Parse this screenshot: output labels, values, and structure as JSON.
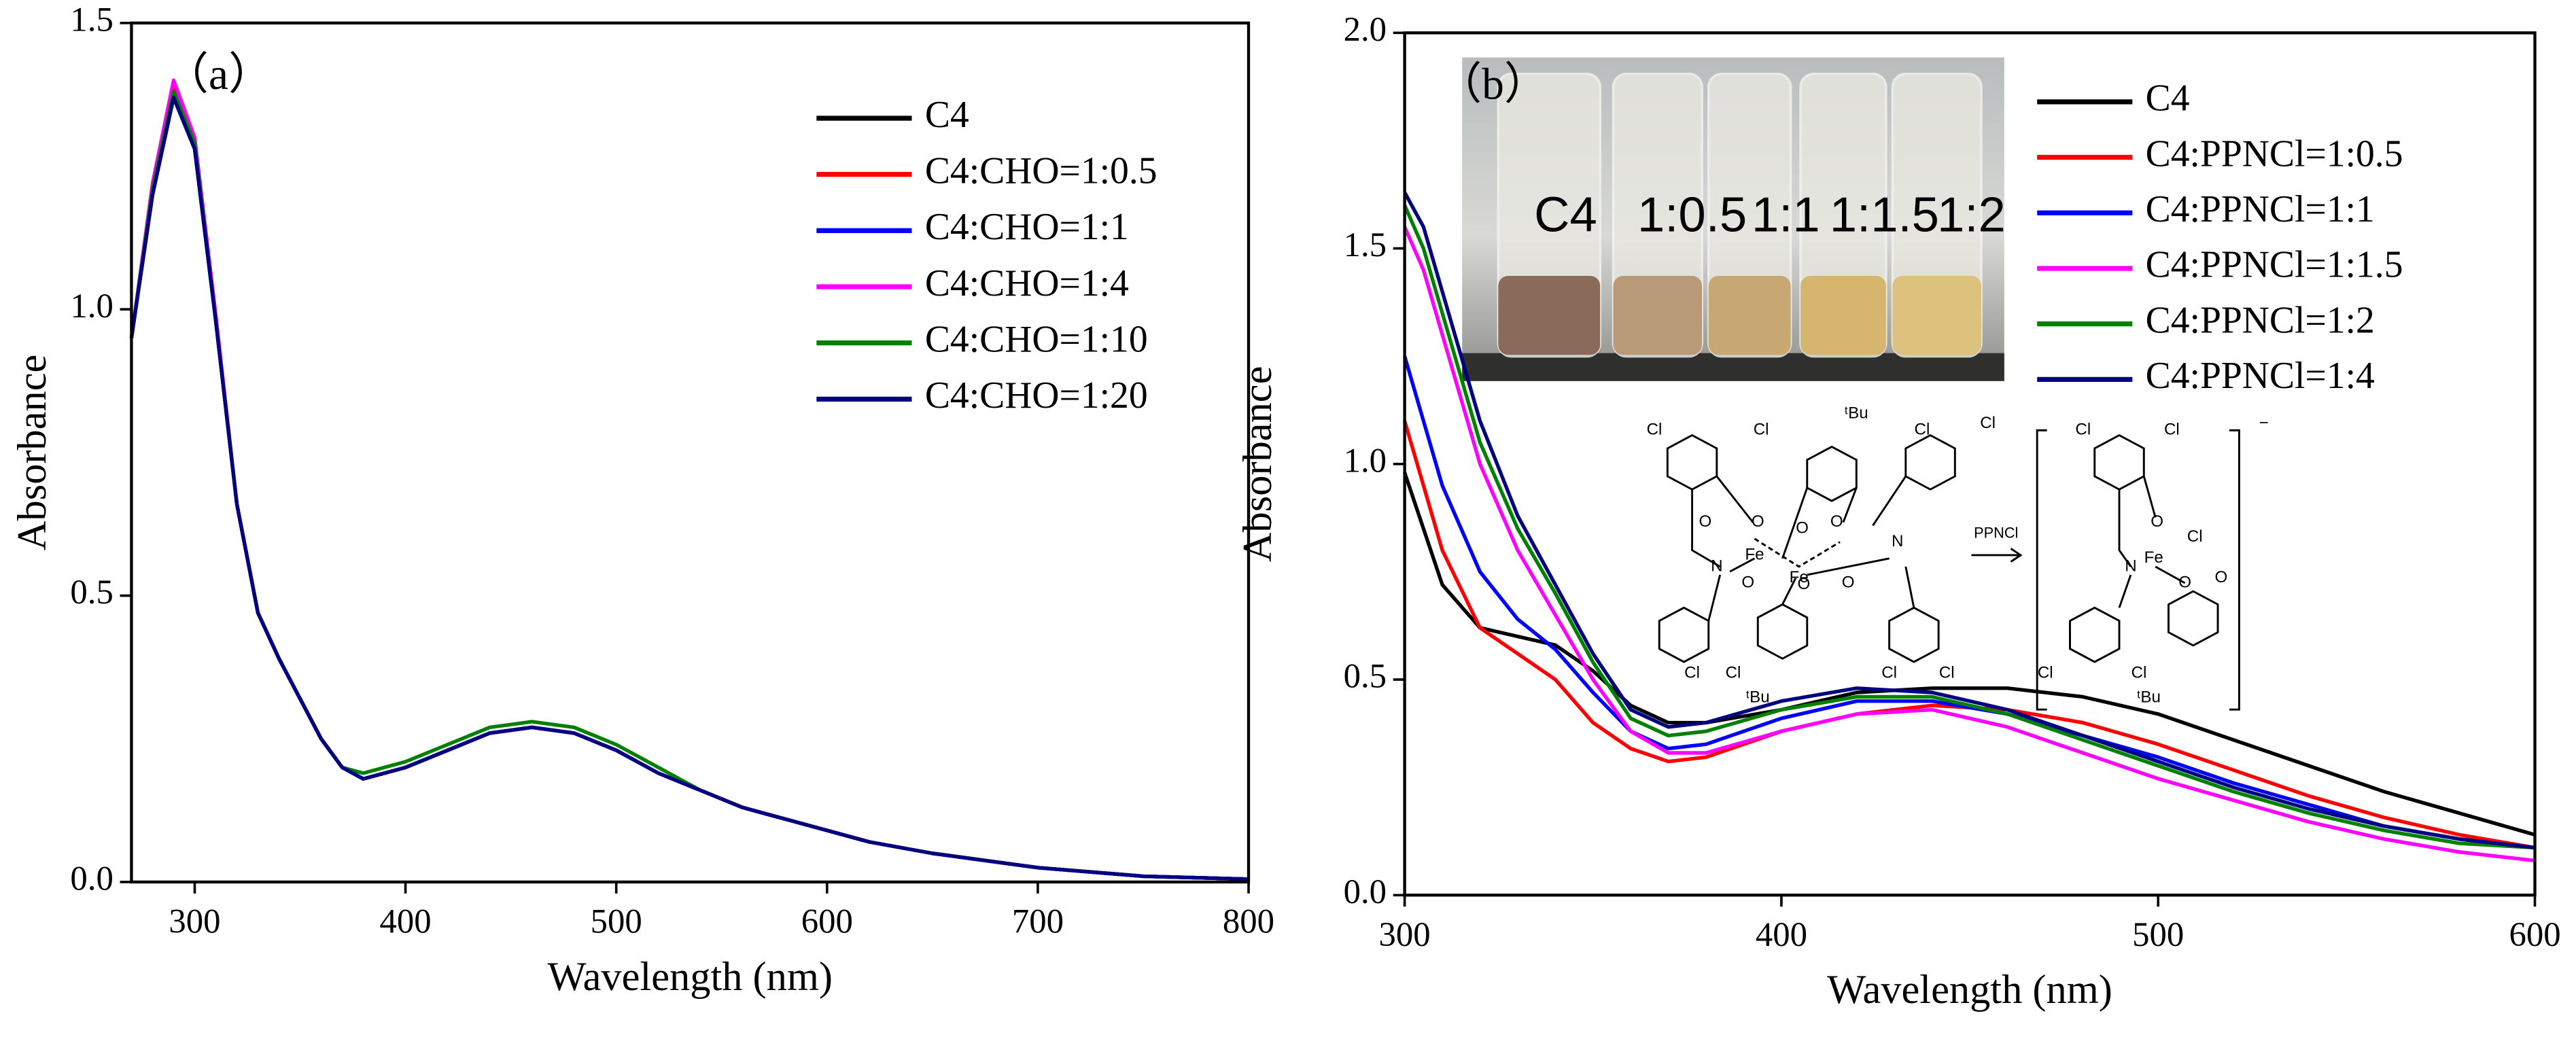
{
  "chart_data": [
    {
      "type": "line",
      "panel_label": "（a）",
      "xlabel": "Wavelength (nm)",
      "ylabel": "Absorbance",
      "xlim": [
        270,
        800
      ],
      "ylim": [
        0,
        1.5
      ],
      "xticks": [
        300,
        400,
        500,
        600,
        700,
        800
      ],
      "yticks": [
        {
          "value": 0,
          "label": "0.0"
        },
        {
          "value": 0.5,
          "label": "0.5"
        },
        {
          "value": 1,
          "label": "1.0"
        },
        {
          "value": 1.5,
          "label": "1.5"
        }
      ],
      "legend": "upper right",
      "x": [
        270,
        280,
        290,
        300,
        310,
        320,
        330,
        340,
        350,
        360,
        370,
        380,
        400,
        420,
        440,
        460,
        480,
        500,
        520,
        540,
        560,
        580,
        600,
        620,
        650,
        700,
        750,
        800
      ],
      "series": [
        {
          "name": "C4",
          "color": "#000000",
          "values": [
            0.95,
            1.2,
            1.37,
            1.28,
            0.98,
            0.66,
            0.47,
            0.39,
            0.32,
            0.25,
            0.2,
            0.18,
            0.2,
            0.23,
            0.26,
            0.27,
            0.26,
            0.23,
            0.19,
            0.16,
            0.13,
            0.11,
            0.09,
            0.07,
            0.05,
            0.025,
            0.01,
            0.005
          ]
        },
        {
          "name": "C4:CHO=1:0.5",
          "color": "#ff0000",
          "values": [
            0.95,
            1.21,
            1.39,
            1.29,
            0.98,
            0.66,
            0.47,
            0.39,
            0.32,
            0.25,
            0.2,
            0.18,
            0.2,
            0.23,
            0.26,
            0.27,
            0.26,
            0.23,
            0.19,
            0.16,
            0.13,
            0.11,
            0.09,
            0.07,
            0.05,
            0.025,
            0.01,
            0.005
          ]
        },
        {
          "name": "C4:CHO=1:1",
          "color": "#0000ff",
          "values": [
            0.95,
            1.21,
            1.38,
            1.28,
            0.98,
            0.66,
            0.47,
            0.39,
            0.32,
            0.25,
            0.2,
            0.18,
            0.2,
            0.23,
            0.26,
            0.27,
            0.26,
            0.23,
            0.19,
            0.16,
            0.13,
            0.11,
            0.09,
            0.07,
            0.05,
            0.025,
            0.01,
            0.005
          ]
        },
        {
          "name": "C4:CHO=1:4",
          "color": "#ff00ff",
          "values": [
            0.95,
            1.22,
            1.4,
            1.3,
            0.99,
            0.66,
            0.47,
            0.39,
            0.32,
            0.25,
            0.2,
            0.18,
            0.2,
            0.23,
            0.26,
            0.27,
            0.26,
            0.23,
            0.19,
            0.16,
            0.13,
            0.11,
            0.09,
            0.07,
            0.05,
            0.025,
            0.01,
            0.005
          ]
        },
        {
          "name": "C4:CHO=1:10",
          "color": "#008000",
          "values": [
            0.95,
            1.21,
            1.38,
            1.29,
            0.98,
            0.66,
            0.47,
            0.39,
            0.32,
            0.25,
            0.2,
            0.19,
            0.21,
            0.24,
            0.27,
            0.28,
            0.27,
            0.24,
            0.2,
            0.16,
            0.13,
            0.11,
            0.09,
            0.07,
            0.05,
            0.025,
            0.01,
            0.005
          ]
        },
        {
          "name": "C4:CHO=1:20",
          "color": "#000080",
          "values": [
            0.95,
            1.2,
            1.37,
            1.28,
            0.98,
            0.66,
            0.47,
            0.39,
            0.32,
            0.25,
            0.2,
            0.18,
            0.2,
            0.23,
            0.26,
            0.27,
            0.26,
            0.23,
            0.19,
            0.16,
            0.13,
            0.11,
            0.09,
            0.07,
            0.05,
            0.025,
            0.01,
            0.005
          ]
        }
      ]
    },
    {
      "type": "line",
      "panel_label": "（b）",
      "xlabel": "Wavelength (nm)",
      "ylabel": "Absorbance",
      "xlim": [
        300,
        600
      ],
      "ylim": [
        0,
        2
      ],
      "xticks": [
        300,
        400,
        500,
        600
      ],
      "yticks": [
        {
          "value": 0,
          "label": "0.0"
        },
        {
          "value": 0.5,
          "label": "0.5"
        },
        {
          "value": 1,
          "label": "1.0"
        },
        {
          "value": 1.5,
          "label": "1.5"
        },
        {
          "value": 2,
          "label": "2.0"
        }
      ],
      "legend": "upper right",
      "photo_labels": [
        "C4",
        "1:0.5",
        "1:1",
        "1:1.5",
        "1:2"
      ],
      "scheme_labels": [
        "Cl",
        "Cl",
        "ᵗBu",
        "Cl",
        "Cl",
        "O",
        "O",
        "O",
        "O",
        "N",
        "Fe",
        "Fe",
        "N",
        "O",
        "O",
        "O",
        "Cl",
        "Cl",
        "ᵗBu",
        "Cl",
        "Cl",
        "PPNCl",
        "Cl",
        "Cl",
        "O",
        "N",
        "Fe",
        "Cl",
        "O",
        "O",
        "Cl",
        "Cl",
        "ᵗBu",
        "−"
      ],
      "x": [
        300,
        305,
        310,
        320,
        330,
        340,
        350,
        360,
        370,
        380,
        400,
        420,
        440,
        460,
        480,
        500,
        520,
        540,
        560,
        580,
        600
      ],
      "series": [
        {
          "name": "C4",
          "color": "#000000",
          "values": [
            0.98,
            0.85,
            0.72,
            0.62,
            0.6,
            0.58,
            0.52,
            0.44,
            0.4,
            0.4,
            0.43,
            0.47,
            0.48,
            0.48,
            0.46,
            0.42,
            0.36,
            0.3,
            0.24,
            0.19,
            0.14
          ]
        },
        {
          "name": "C4:PPNCl=1:0.5",
          "color": "#ff0000",
          "values": [
            1.1,
            0.95,
            0.8,
            0.62,
            0.56,
            0.5,
            0.4,
            0.34,
            0.31,
            0.32,
            0.38,
            0.42,
            0.44,
            0.43,
            0.4,
            0.35,
            0.29,
            0.23,
            0.18,
            0.14,
            0.11
          ]
        },
        {
          "name": "C4:PPNCl=1:1",
          "color": "#0000ff",
          "values": [
            1.25,
            1.1,
            0.95,
            0.75,
            0.64,
            0.57,
            0.47,
            0.38,
            0.34,
            0.35,
            0.41,
            0.45,
            0.45,
            0.42,
            0.37,
            0.32,
            0.26,
            0.21,
            0.16,
            0.13,
            0.11
          ]
        },
        {
          "name": "C4:PPNCl=1:1.5",
          "color": "#ff00ff",
          "values": [
            1.55,
            1.45,
            1.3,
            1.0,
            0.8,
            0.65,
            0.5,
            0.38,
            0.33,
            0.33,
            0.38,
            0.42,
            0.43,
            0.39,
            0.33,
            0.27,
            0.22,
            0.17,
            0.13,
            0.1,
            0.08
          ]
        },
        {
          "name": "C4:PPNCl=1:2",
          "color": "#008000",
          "values": [
            1.6,
            1.5,
            1.35,
            1.05,
            0.85,
            0.7,
            0.54,
            0.41,
            0.37,
            0.38,
            0.43,
            0.46,
            0.46,
            0.42,
            0.36,
            0.3,
            0.24,
            0.19,
            0.15,
            0.12,
            0.11
          ]
        },
        {
          "name": "C4:PPNCl=1:4",
          "color": "#000080",
          "values": [
            1.63,
            1.55,
            1.4,
            1.1,
            0.88,
            0.72,
            0.56,
            0.43,
            0.39,
            0.4,
            0.45,
            0.48,
            0.47,
            0.43,
            0.37,
            0.31,
            0.25,
            0.2,
            0.16,
            0.13,
            0.11
          ]
        }
      ]
    }
  ]
}
